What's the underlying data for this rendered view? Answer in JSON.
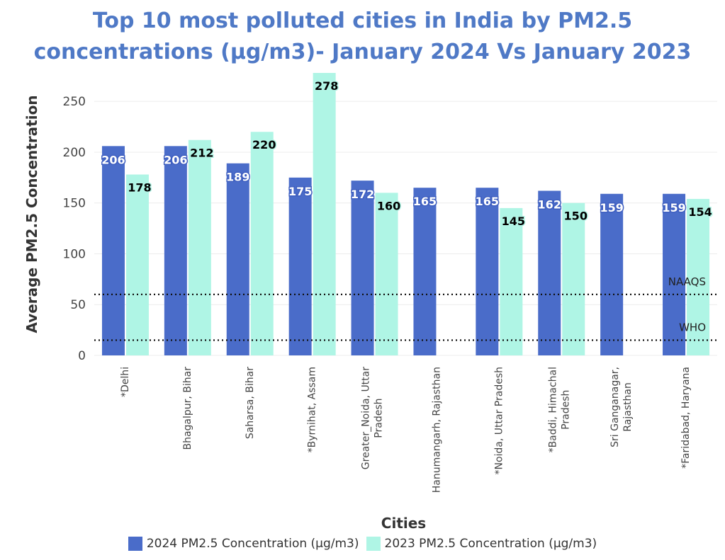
{
  "title_line1": "Top 10 most polluted cities in India by PM2.5",
  "title_line2": "concentrations (µg/m3)- January 2024 Vs January 2023",
  "colors": {
    "series_2024": "#4a6cc9",
    "series_2023": "#aff5e5",
    "title": "#4f79c6"
  },
  "chart_data": {
    "type": "bar",
    "title": "Top 10 most polluted cities in India by PM2.5 concentrations (µg/m3)- January 2024 Vs January 2023",
    "xlabel": "Cities",
    "ylabel": "Average PM2.5 Concentration",
    "ylim": [
      0,
      278
    ],
    "yticks": [
      "0",
      "50",
      "100",
      "150",
      "200",
      "250"
    ],
    "grid": "horizontal",
    "legend_position": "bottom",
    "categories": [
      "*Delhi",
      "Bhagalpur, Bihar",
      "Saharsa, Bihar",
      "*Byrnihat, Assam",
      "Greater_Noida, Uttar Pradesh",
      "Hanumangarh, Rajasthan",
      "*Noida, Uttar Pradesh",
      "*Baddi, Himachal Pradesh",
      "Sri Ganganagar, Rajasthan",
      "*Faridabad, Haryana"
    ],
    "category_lines": [
      [
        "*Delhi"
      ],
      [
        "Bhagalpur, Bihar"
      ],
      [
        "Saharsa, Bihar"
      ],
      [
        "*Byrnihat, Assam"
      ],
      [
        "Greater_Noida, Uttar",
        "Pradesh"
      ],
      [
        "Hanumangarh, Rajasthan"
      ],
      [
        "*Noida, Uttar Pradesh"
      ],
      [
        "*Baddi, Himachal",
        "Pradesh"
      ],
      [
        "Sri Ganganagar,",
        "Rajasthan"
      ],
      [
        "*Faridabad, Haryana"
      ]
    ],
    "series": [
      {
        "name": "2024 PM2.5 Concentration (µg/m3)",
        "values": [
          206,
          206,
          189,
          175,
          172,
          165,
          165,
          162,
          159,
          159
        ]
      },
      {
        "name": "2023 PM2.5 Concentration (µg/m3)",
        "values": [
          178,
          212,
          220,
          278,
          160,
          null,
          145,
          150,
          null,
          154
        ]
      }
    ],
    "reference_lines": [
      {
        "label": "NAAQS",
        "value": 60
      },
      {
        "label": "WHO",
        "value": 15
      }
    ]
  }
}
